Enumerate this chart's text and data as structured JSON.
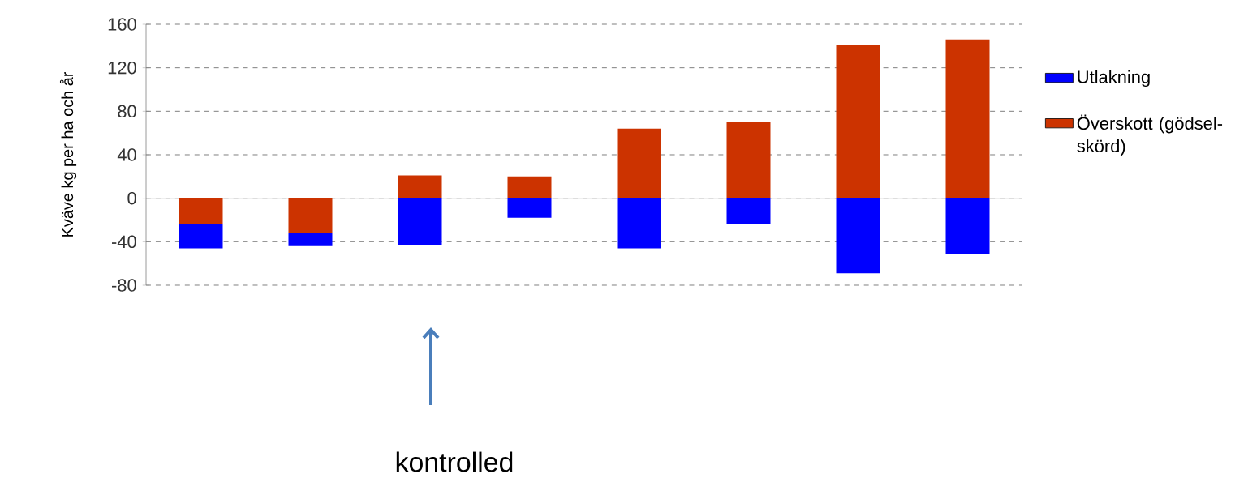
{
  "chart_data": {
    "type": "bar",
    "stacked": true,
    "ylabel": "Kväve kg per ha och år",
    "categories": [
      null,
      null,
      null,
      null,
      null,
      null,
      null,
      null
    ],
    "series": [
      {
        "name": "Överskott (gödsel-skörd)",
        "color": "#cc3300",
        "values": [
          -24,
          -32,
          21,
          20,
          64,
          70,
          141,
          146
        ]
      },
      {
        "name": "Utlakning",
        "color": "#0000ff",
        "values": [
          -22,
          -12,
          -43,
          -18,
          -46,
          -24,
          -69,
          -51
        ]
      }
    ],
    "ylim": [
      -80,
      160
    ],
    "yticks": [
      -80,
      -40,
      0,
      40,
      80,
      120,
      160
    ],
    "grid": "y",
    "legend": "right",
    "annotations": [
      "kontrolled"
    ]
  }
}
